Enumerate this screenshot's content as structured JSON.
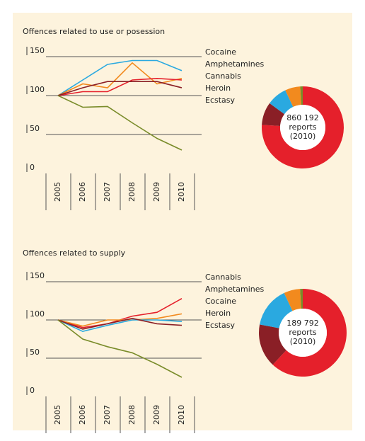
{
  "chart_data": [
    {
      "type": "line",
      "title": "Offences related to use or posession",
      "categories": [
        "2005",
        "2006",
        "2007",
        "2008",
        "2009",
        "2010"
      ],
      "ylim": [
        0,
        150
      ],
      "yticks": [
        0,
        50,
        100,
        150
      ],
      "series": [
        {
          "name": "Cocaine",
          "color": "#2aa9e0",
          "values": [
            100,
            120,
            140,
            145,
            145,
            132
          ]
        },
        {
          "name": "Amphetamines",
          "color": "#f28a1e",
          "values": [
            100,
            115,
            110,
            142,
            115,
            122
          ]
        },
        {
          "name": "Cannabis",
          "color": "#e5202b",
          "values": [
            100,
            105,
            105,
            120,
            122,
            120
          ]
        },
        {
          "name": "Heroin",
          "color": "#8a1f26",
          "values": [
            100,
            110,
            118,
            118,
            118,
            110
          ]
        },
        {
          "name": "Ecstasy",
          "color": "#7a8c2a",
          "values": [
            100,
            85,
            86,
            65,
            45,
            30
          ]
        }
      ]
    },
    {
      "type": "pie",
      "center_label": [
        "860 192",
        "reports",
        "(2010)"
      ],
      "values": [
        76,
        9,
        8,
        6,
        1
      ],
      "colors": [
        "#e5202b",
        "#8a1f26",
        "#2aa9e0",
        "#f28a1e",
        "#7a8c2a"
      ]
    },
    {
      "type": "line",
      "title": "Offences related to supply",
      "categories": [
        "2005",
        "2006",
        "2007",
        "2008",
        "2009",
        "2010"
      ],
      "ylim": [
        0,
        150
      ],
      "yticks": [
        0,
        50,
        100,
        150
      ],
      "series": [
        {
          "name": "Cannabis",
          "color": "#e5202b",
          "values": [
            100,
            90,
            95,
            105,
            110,
            128
          ]
        },
        {
          "name": "Amphetamines",
          "color": "#f28a1e",
          "values": [
            100,
            92,
            100,
            100,
            102,
            108
          ]
        },
        {
          "name": "Cocaine",
          "color": "#2aa9e0",
          "values": [
            100,
            85,
            93,
            100,
            100,
            98
          ]
        },
        {
          "name": "Heroin",
          "color": "#8a1f26",
          "values": [
            100,
            88,
            95,
            102,
            95,
            93
          ]
        },
        {
          "name": "Ecstasy",
          "color": "#7a8c2a",
          "values": [
            100,
            75,
            65,
            57,
            42,
            25
          ]
        }
      ]
    },
    {
      "type": "pie",
      "center_label": [
        "189 792",
        "reports",
        "(2010)"
      ],
      "values": [
        62,
        16,
        15,
        6,
        1
      ],
      "colors": [
        "#e5202b",
        "#8a1f26",
        "#2aa9e0",
        "#f28a1e",
        "#7a8c2a"
      ]
    }
  ]
}
